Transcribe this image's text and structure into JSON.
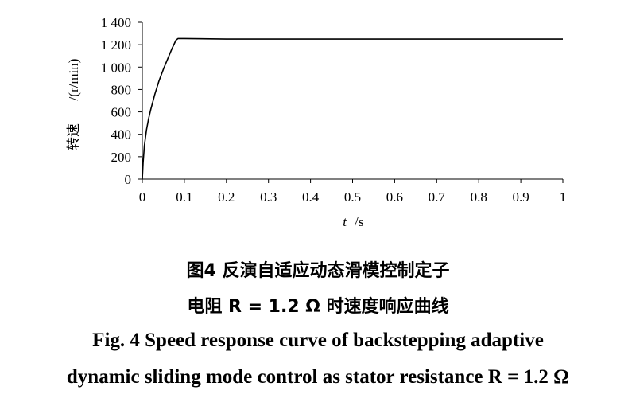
{
  "chart_data": {
    "type": "line",
    "title": "",
    "xlabel_var": "t",
    "xlabel_unit": "/s",
    "ylabel_name": "转速",
    "ylabel_unit": "/(r/min)",
    "xlim": [
      0,
      1
    ],
    "ylim": [
      0,
      1400
    ],
    "x_ticks": [
      "0",
      "0.1",
      "0.2",
      "0.3",
      "0.4",
      "0.5",
      "0.6",
      "0.7",
      "0.8",
      "0.9",
      "1"
    ],
    "x_tick_values": [
      0,
      0.1,
      0.2,
      0.3,
      0.4,
      0.5,
      0.6,
      0.7,
      0.8,
      0.9,
      1
    ],
    "y_ticks": [
      "0",
      "200",
      "400",
      "600",
      "800",
      "1 000",
      "1 200",
      "1 400"
    ],
    "y_tick_values": [
      0,
      200,
      400,
      600,
      800,
      1000,
      1200,
      1400
    ],
    "grid": false,
    "series": [
      {
        "x": [
          0,
          0.002,
          0.005,
          0.01,
          0.015,
          0.02,
          0.03,
          0.04,
          0.05,
          0.06,
          0.07,
          0.08,
          0.085,
          0.1,
          0.2,
          0.3,
          0.4,
          0.5,
          0.6,
          0.7,
          0.8,
          0.9,
          1.0
        ],
        "y": [
          0,
          150,
          300,
          440,
          540,
          620,
          760,
          880,
          980,
          1070,
          1160,
          1240,
          1255,
          1255,
          1250,
          1250,
          1250,
          1250,
          1250,
          1250,
          1250,
          1250,
          1250
        ]
      }
    ]
  },
  "caption": {
    "cn_line1": "图4  反演自适应动态滑模控制定子",
    "cn_line2": "电阻 R = 1.2 Ω 时速度响应曲线",
    "en_line1": "Fig. 4  Speed response curve of backstepping adaptive",
    "en_line2": "dynamic sliding mode control as stator resistance R = 1.2 Ω"
  }
}
